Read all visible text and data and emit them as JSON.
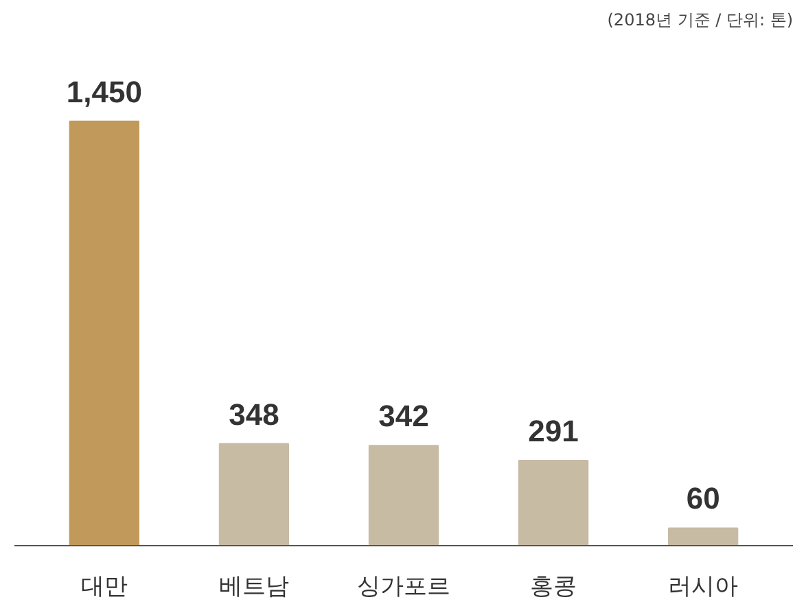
{
  "chart_data": {
    "type": "bar",
    "categories": [
      "대만",
      "베트남",
      "싱가포르",
      "홍콩",
      "러시아"
    ],
    "values": [
      1450,
      348,
      342,
      291,
      60
    ],
    "colors": [
      "#c19a5b",
      "#c8bba4",
      "#c8bba4",
      "#c8bba4",
      "#c8bba4"
    ],
    "value_labels": [
      "1,450",
      "348",
      "342",
      "291",
      "60"
    ],
    "grid": false,
    "tick_labels": "x",
    "annotations": [
      "(2018년 기준 / 단위: 톤)"
    ]
  }
}
